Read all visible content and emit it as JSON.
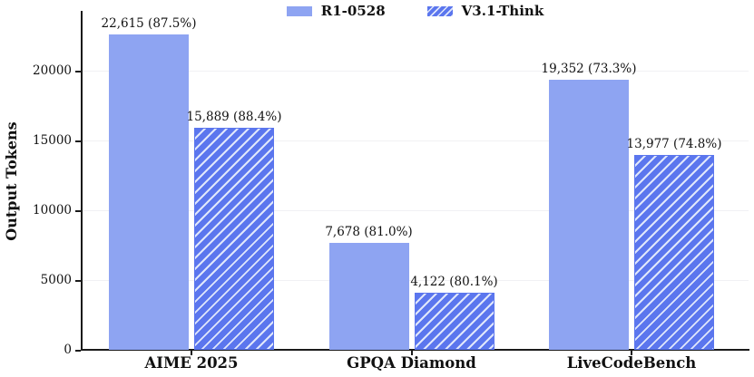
{
  "chart_data": {
    "type": "bar",
    "categories": [
      "AIME 2025",
      "GPQA Diamond",
      "LiveCodeBench"
    ],
    "series": [
      {
        "name": "R1-0528",
        "pattern": "solid",
        "color": "#8ea4f2",
        "values": [
          22615,
          7678,
          19352
        ],
        "labels": [
          "22,615 (87.5%)",
          "7,678 (81.0%)",
          "19,352 (73.3%)"
        ]
      },
      {
        "name": "V3.1-Think",
        "pattern": "hatch-forward-diagonal",
        "color": "#5b76ee",
        "hatch_color": "#e0e7fb",
        "values": [
          15889,
          4122,
          13977
        ],
        "labels": [
          "15,889 (88.4%)",
          "4,122 (80.1%)",
          "13,977 (74.8%)"
        ]
      }
    ],
    "title": "",
    "xlabel": "",
    "ylabel": "Output Tokens",
    "yticks": [
      0,
      5000,
      10000,
      15000,
      20000
    ],
    "ytick_labels": [
      "0",
      "5000",
      "10000",
      "15000",
      "20000"
    ],
    "ylim": [
      0,
      24300
    ],
    "grid": "horizontal-faint",
    "legend_position": "top-center",
    "axis_color": "#1a1a1a",
    "grid_color": "#f1f1f4"
  }
}
